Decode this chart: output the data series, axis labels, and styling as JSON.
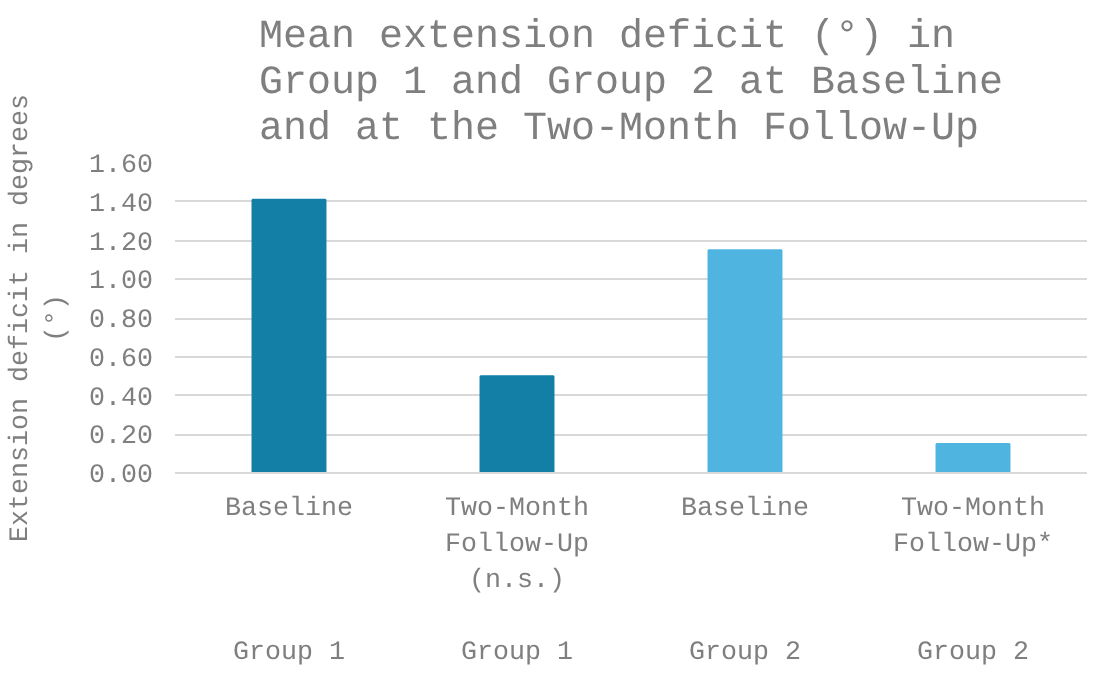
{
  "chart_data": {
    "type": "bar",
    "title": "Mean extension deficit (°) in\nGroup 1 and Group 2 at Baseline\nand at the Two-Month Follow-Up",
    "ylabel": "Extension deficit in degrees\n(°)",
    "categories": [
      "Baseline\nGroup 1",
      "Two-Month\nFollow-Up\n(n.s.)\nGroup 1",
      "Baseline\nGroup 2",
      "Two-Month\nFollow-Up*\nGroup 2"
    ],
    "values": [
      1.41,
      0.5,
      1.15,
      0.15
    ],
    "colors": [
      "#137fa6",
      "#137fa6",
      "#4fb5e0",
      "#4fb5e0"
    ],
    "ylim": [
      0,
      1.6
    ],
    "yticks": [
      {
        "value": 0,
        "label": "0.00"
      },
      {
        "value": 0.2,
        "label": "0.20"
      },
      {
        "value": 0.4,
        "label": "0.40"
      },
      {
        "value": 0.6,
        "label": "0.60"
      },
      {
        "value": 0.8,
        "label": "0.80"
      },
      {
        "value": 1.0,
        "label": "1.00"
      },
      {
        "value": 1.2,
        "label": "1.20"
      },
      {
        "value": 1.4,
        "label": "1.40"
      },
      {
        "value": 1.6,
        "label": "1.60"
      }
    ],
    "grid": "y"
  }
}
